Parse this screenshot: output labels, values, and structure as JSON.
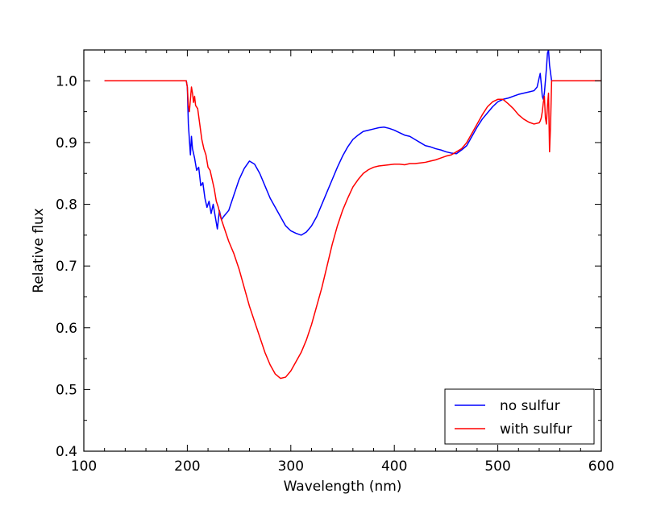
{
  "chart_data": {
    "type": "line",
    "title": "",
    "xlabel": "Wavelength (nm)",
    "ylabel": "Relative flux",
    "xlim": [
      100,
      600
    ],
    "ylim": [
      0.4,
      1.05
    ],
    "xticks": [
      100,
      200,
      300,
      400,
      500,
      600
    ],
    "yticks": [
      0.4,
      0.5,
      0.6,
      0.7,
      0.8,
      0.9,
      1.0
    ],
    "xtick_labels": [
      "100",
      "200",
      "300",
      "400",
      "500",
      "600"
    ],
    "ytick_labels": [
      "0.4",
      "0.5",
      "0.6",
      "0.7",
      "0.8",
      "0.9",
      "1.0"
    ],
    "grid": false,
    "legend_position": "lower-right",
    "series": [
      {
        "name": "no sulfur",
        "color": "#0000ff",
        "points": [
          [
            120,
            1.0
          ],
          [
            199,
            1.0
          ],
          [
            200,
            0.99
          ],
          [
            201,
            0.93
          ],
          [
            202,
            0.905
          ],
          [
            203,
            0.88
          ],
          [
            204,
            0.91
          ],
          [
            205,
            0.89
          ],
          [
            207,
            0.875
          ],
          [
            209,
            0.855
          ],
          [
            211,
            0.86
          ],
          [
            213,
            0.83
          ],
          [
            215,
            0.835
          ],
          [
            217,
            0.81
          ],
          [
            219,
            0.795
          ],
          [
            221,
            0.805
          ],
          [
            223,
            0.785
          ],
          [
            225,
            0.8
          ],
          [
            227,
            0.78
          ],
          [
            229,
            0.76
          ],
          [
            231,
            0.79
          ],
          [
            233,
            0.775
          ],
          [
            235,
            0.78
          ],
          [
            240,
            0.79
          ],
          [
            245,
            0.815
          ],
          [
            250,
            0.84
          ],
          [
            255,
            0.858
          ],
          [
            260,
            0.87
          ],
          [
            265,
            0.865
          ],
          [
            270,
            0.85
          ],
          [
            275,
            0.83
          ],
          [
            280,
            0.81
          ],
          [
            285,
            0.795
          ],
          [
            290,
            0.78
          ],
          [
            295,
            0.765
          ],
          [
            300,
            0.757
          ],
          [
            305,
            0.753
          ],
          [
            310,
            0.75
          ],
          [
            315,
            0.755
          ],
          [
            320,
            0.765
          ],
          [
            325,
            0.78
          ],
          [
            330,
            0.8
          ],
          [
            335,
            0.82
          ],
          [
            340,
            0.84
          ],
          [
            345,
            0.86
          ],
          [
            350,
            0.878
          ],
          [
            355,
            0.893
          ],
          [
            360,
            0.905
          ],
          [
            365,
            0.912
          ],
          [
            370,
            0.918
          ],
          [
            375,
            0.92
          ],
          [
            380,
            0.922
          ],
          [
            385,
            0.924
          ],
          [
            390,
            0.925
          ],
          [
            395,
            0.923
          ],
          [
            400,
            0.92
          ],
          [
            405,
            0.916
          ],
          [
            410,
            0.912
          ],
          [
            415,
            0.91
          ],
          [
            420,
            0.905
          ],
          [
            425,
            0.9
          ],
          [
            430,
            0.895
          ],
          [
            435,
            0.893
          ],
          [
            440,
            0.89
          ],
          [
            445,
            0.888
          ],
          [
            450,
            0.885
          ],
          [
            455,
            0.883
          ],
          [
            460,
            0.882
          ],
          [
            465,
            0.888
          ],
          [
            470,
            0.895
          ],
          [
            475,
            0.91
          ],
          [
            480,
            0.925
          ],
          [
            485,
            0.938
          ],
          [
            490,
            0.948
          ],
          [
            495,
            0.958
          ],
          [
            500,
            0.966
          ],
          [
            505,
            0.97
          ],
          [
            510,
            0.972
          ],
          [
            515,
            0.975
          ],
          [
            520,
            0.978
          ],
          [
            525,
            0.98
          ],
          [
            530,
            0.982
          ],
          [
            535,
            0.984
          ],
          [
            538,
            0.99
          ],
          [
            540,
            1.005
          ],
          [
            541,
            1.012
          ],
          [
            542,
            0.995
          ],
          [
            543,
            0.975
          ],
          [
            544,
            0.97
          ],
          [
            545,
            0.98
          ],
          [
            546,
            1.0
          ],
          [
            547,
            1.02
          ],
          [
            548,
            1.045
          ],
          [
            549,
            1.05
          ],
          [
            550,
            1.025
          ],
          [
            552,
            1.0
          ],
          [
            600,
            1.0
          ]
        ]
      },
      {
        "name": "with sulfur",
        "color": "#ff0000",
        "points": [
          [
            120,
            1.0
          ],
          [
            199,
            1.0
          ],
          [
            200,
            0.99
          ],
          [
            201,
            0.96
          ],
          [
            202,
            0.95
          ],
          [
            203,
            0.97
          ],
          [
            204,
            0.99
          ],
          [
            205,
            0.98
          ],
          [
            206,
            0.965
          ],
          [
            207,
            0.975
          ],
          [
            208,
            0.96
          ],
          [
            210,
            0.955
          ],
          [
            212,
            0.93
          ],
          [
            214,
            0.905
          ],
          [
            216,
            0.89
          ],
          [
            218,
            0.88
          ],
          [
            220,
            0.86
          ],
          [
            222,
            0.855
          ],
          [
            224,
            0.84
          ],
          [
            226,
            0.825
          ],
          [
            228,
            0.805
          ],
          [
            230,
            0.795
          ],
          [
            232,
            0.78
          ],
          [
            235,
            0.765
          ],
          [
            240,
            0.74
          ],
          [
            245,
            0.72
          ],
          [
            250,
            0.695
          ],
          [
            255,
            0.665
          ],
          [
            260,
            0.635
          ],
          [
            265,
            0.61
          ],
          [
            270,
            0.585
          ],
          [
            275,
            0.56
          ],
          [
            280,
            0.54
          ],
          [
            285,
            0.525
          ],
          [
            290,
            0.518
          ],
          [
            295,
            0.52
          ],
          [
            300,
            0.53
          ],
          [
            305,
            0.545
          ],
          [
            310,
            0.56
          ],
          [
            315,
            0.58
          ],
          [
            320,
            0.605
          ],
          [
            325,
            0.635
          ],
          [
            330,
            0.665
          ],
          [
            335,
            0.7
          ],
          [
            340,
            0.735
          ],
          [
            345,
            0.765
          ],
          [
            350,
            0.79
          ],
          [
            355,
            0.81
          ],
          [
            360,
            0.828
          ],
          [
            365,
            0.84
          ],
          [
            370,
            0.85
          ],
          [
            375,
            0.856
          ],
          [
            380,
            0.86
          ],
          [
            385,
            0.862
          ],
          [
            390,
            0.863
          ],
          [
            395,
            0.864
          ],
          [
            400,
            0.865
          ],
          [
            405,
            0.865
          ],
          [
            410,
            0.864
          ],
          [
            415,
            0.866
          ],
          [
            420,
            0.866
          ],
          [
            425,
            0.867
          ],
          [
            430,
            0.868
          ],
          [
            435,
            0.87
          ],
          [
            440,
            0.872
          ],
          [
            445,
            0.875
          ],
          [
            450,
            0.878
          ],
          [
            455,
            0.88
          ],
          [
            460,
            0.885
          ],
          [
            465,
            0.89
          ],
          [
            470,
            0.9
          ],
          [
            475,
            0.915
          ],
          [
            480,
            0.93
          ],
          [
            485,
            0.945
          ],
          [
            490,
            0.958
          ],
          [
            495,
            0.966
          ],
          [
            500,
            0.97
          ],
          [
            505,
            0.97
          ],
          [
            510,
            0.963
          ],
          [
            515,
            0.955
          ],
          [
            520,
            0.945
          ],
          [
            525,
            0.938
          ],
          [
            530,
            0.933
          ],
          [
            535,
            0.93
          ],
          [
            540,
            0.932
          ],
          [
            541,
            0.935
          ],
          [
            542,
            0.94
          ],
          [
            543,
            0.95
          ],
          [
            544,
            0.965
          ],
          [
            545,
            0.975
          ],
          [
            546,
            0.94
          ],
          [
            547,
            0.93
          ],
          [
            548,
            0.96
          ],
          [
            549,
            0.98
          ],
          [
            550,
            0.885
          ],
          [
            551,
            0.93
          ],
          [
            552,
            1.0
          ],
          [
            600,
            1.0
          ]
        ]
      }
    ]
  }
}
